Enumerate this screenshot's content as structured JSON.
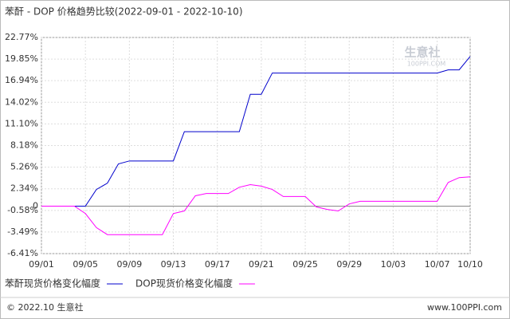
{
  "chart_data": {
    "type": "line",
    "title": "苯酐 - DOP 价格趋势比较(2022-09-01 - 2022-10-10)",
    "watermark": "生意社",
    "watermark_url": "100PPI.COM",
    "footer_left": "© 2022.10 生意社",
    "footer_right": "www.100PPI.com",
    "categories": [
      "09/01",
      null,
      null,
      null,
      "09/05",
      null,
      null,
      null,
      "09/09",
      null,
      null,
      null,
      "09/13",
      null,
      null,
      null,
      "09/17",
      null,
      null,
      null,
      "09/21",
      null,
      null,
      null,
      "09/25",
      null,
      null,
      null,
      "09/29",
      null,
      null,
      null,
      "10/03",
      null,
      null,
      null,
      "10/07",
      null,
      null,
      "10/10"
    ],
    "series": [
      {
        "name": "苯酐现货价格变化幅度",
        "color": "#0000cc",
        "values": [
          0,
          0,
          0,
          0,
          0,
          2.25,
          3.1,
          5.7,
          6.1,
          6.1,
          6.1,
          6.1,
          6.1,
          10.05,
          10.05,
          10.05,
          10.05,
          10.05,
          10.05,
          15.1,
          15.1,
          17.97,
          17.97,
          17.97,
          17.97,
          17.97,
          17.97,
          17.97,
          17.97,
          17.97,
          17.97,
          17.97,
          17.97,
          17.97,
          17.97,
          17.97,
          17.97,
          18.4,
          18.4,
          20.2
        ]
      },
      {
        "name": "DOP现货价格变化幅度",
        "color": "#ff00ff",
        "values": [
          0,
          0,
          0,
          0,
          -1.0,
          -2.9,
          -3.85,
          -3.85,
          -3.85,
          -3.85,
          -3.85,
          -3.85,
          -1.0,
          -0.65,
          1.4,
          1.7,
          1.7,
          1.7,
          2.55,
          2.9,
          2.7,
          2.25,
          1.3,
          1.3,
          1.3,
          -0.1,
          -0.45,
          -0.65,
          0.3,
          0.65,
          0.65,
          0.65,
          0.65,
          0.65,
          0.65,
          0.65,
          0.65,
          3.2,
          3.85,
          3.95
        ]
      }
    ],
    "ylim": [
      -6.41,
      22.77
    ],
    "yticks": [
      {
        "value": -6.41,
        "label": "-6.41%"
      },
      {
        "value": -3.49,
        "label": "-3.49%"
      },
      {
        "value": -0.58,
        "label": "-0.58%"
      },
      {
        "value": 0,
        "label": "0"
      },
      {
        "value": 2.34,
        "label": "2.34%"
      },
      {
        "value": 5.26,
        "label": "5.26%"
      },
      {
        "value": 8.18,
        "label": "8.18%"
      },
      {
        "value": 11.1,
        "label": "11.10%"
      },
      {
        "value": 14.02,
        "label": "14.02%"
      },
      {
        "value": 16.94,
        "label": "16.94%"
      },
      {
        "value": 19.85,
        "label": "19.85%"
      },
      {
        "value": 22.77,
        "label": "22.77%"
      }
    ],
    "grid": true
  }
}
